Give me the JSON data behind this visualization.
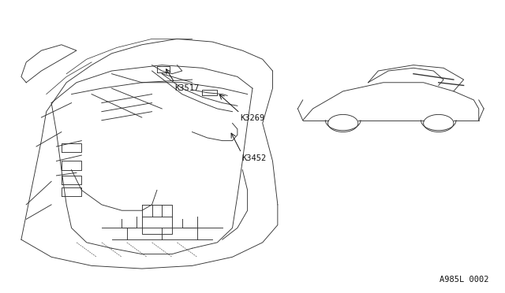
{
  "background_color": "#ffffff",
  "page_code": "A985L 0002",
  "line_color": "#333333",
  "text_color": "#111111",
  "label_K3517": "K3517",
  "label_K3269": "K3269",
  "label_K3452": "K3452"
}
